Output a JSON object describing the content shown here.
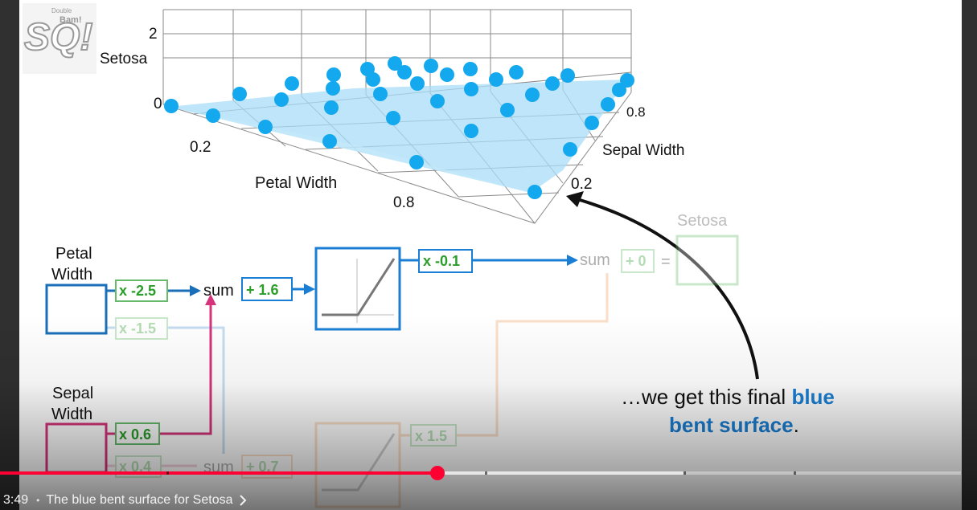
{
  "video": {
    "logo": {
      "text": "SQ!",
      "small_text": "Bam!",
      "tiny_text": "Double"
    },
    "plot": {
      "z_label": "Setosa",
      "z_ticks": [
        "2",
        "0"
      ],
      "x_label": "Petal Width",
      "x_ticks": [
        "0.2",
        "0.8"
      ],
      "y_label": "Sepal Width",
      "y_ticks": [
        "0.8",
        "0.2"
      ]
    },
    "network": {
      "input_petal": "Petal Width",
      "input_sepal": "Sepal Width",
      "w_petal_top": "x -2.5",
      "w_petal_bottom": "x -1.5",
      "w_sepal_top": "x 0.6",
      "w_sepal_bottom": "x 0.4",
      "sum_top": "sum",
      "bias_top": "+ 1.6",
      "w_out_top": "x -0.1",
      "sum_bottom": "sum",
      "bias_bottom": "+ 0.7",
      "w_out_bottom": "x 1.5",
      "sum_out": "sum",
      "bias_out": "+ 0",
      "eq_out": "=",
      "output_label": "Setosa"
    },
    "annotation": {
      "part1": "…we get this final ",
      "highlight1": "blue",
      "highlight2": "bent surface",
      "part2": "."
    },
    "colors": {
      "blue": "#1a7fd4",
      "green": "#2a9d2a",
      "pink": "#d6337a",
      "orange": "#f0a060",
      "dot": "#14a8ee",
      "surface": "#a8dcf7"
    }
  },
  "player": {
    "time": "3:49",
    "separator": "•",
    "chapter_title": "The blue bent surface for Setosa",
    "progress": 0.448,
    "chevron_icon": "chevron-right-icon"
  }
}
